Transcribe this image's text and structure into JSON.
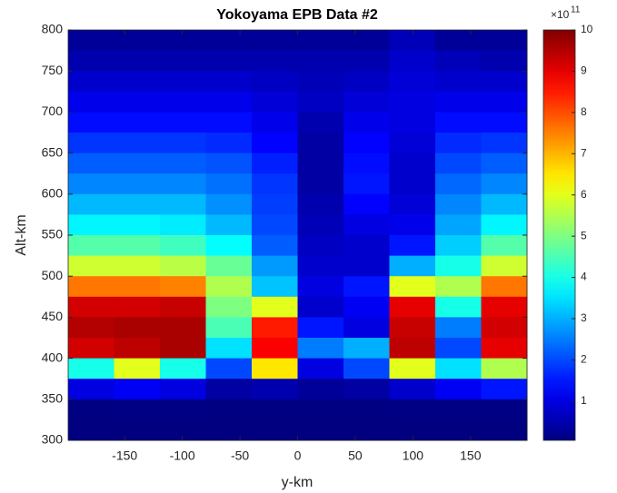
{
  "chart_data": {
    "type": "heatmap",
    "title": "Yokoyama EPB Data #2",
    "xlabel": "y-km",
    "ylabel": "Alt-km",
    "xlim": [
      -199,
      199
    ],
    "ylim": [
      300,
      800
    ],
    "xticks": [
      -150,
      -100,
      -50,
      0,
      50,
      100,
      150
    ],
    "yticks": [
      300,
      350,
      400,
      450,
      500,
      550,
      600,
      650,
      700,
      750,
      800
    ],
    "colormap": "jet",
    "clim": [
      0.05,
      10
    ],
    "cticks": [
      1,
      2,
      3,
      4,
      5,
      6,
      7,
      8,
      9,
      10
    ],
    "c_exponent_base": "×10",
    "c_exponent": "11",
    "z": [
      [
        0.3,
        0.3,
        0.3,
        0.3,
        0.3,
        0.3,
        0.3,
        0.6,
        0.3,
        0.3
      ],
      [
        0.5,
        0.5,
        0.5,
        0.5,
        0.5,
        0.5,
        0.5,
        0.8,
        0.6,
        0.5
      ],
      [
        0.8,
        0.8,
        0.8,
        0.8,
        0.7,
        0.6,
        0.7,
        0.9,
        0.8,
        0.8
      ],
      [
        1.1,
        1.1,
        1.1,
        1.1,
        0.9,
        0.7,
        0.9,
        1.0,
        1.1,
        1.1
      ],
      [
        1.4,
        1.4,
        1.4,
        1.4,
        1.1,
        0.5,
        1.1,
        1.0,
        1.4,
        1.4
      ],
      [
        1.8,
        1.8,
        1.8,
        1.7,
        1.3,
        0.4,
        1.3,
        0.9,
        1.7,
        1.8
      ],
      [
        2.2,
        2.2,
        2.2,
        2.1,
        1.6,
        0.4,
        1.4,
        0.8,
        2.0,
        2.2
      ],
      [
        2.6,
        2.6,
        2.6,
        2.4,
        1.8,
        0.4,
        1.5,
        0.8,
        2.3,
        2.6
      ],
      [
        3.1,
        3.1,
        3.1,
        2.7,
        1.9,
        0.5,
        1.3,
        0.9,
        2.6,
        3.1
      ],
      [
        3.7,
        3.7,
        3.6,
        3.1,
        2.0,
        0.6,
        1.0,
        1.1,
        2.9,
        3.7
      ],
      [
        4.6,
        4.6,
        4.4,
        3.8,
        2.2,
        0.7,
        0.8,
        1.5,
        3.3,
        4.6
      ],
      [
        5.8,
        5.8,
        5.6,
        4.8,
        2.8,
        0.8,
        0.8,
        3.0,
        4.0,
        5.8
      ],
      [
        7.6,
        7.6,
        7.5,
        5.5,
        3.2,
        1.0,
        1.5,
        6.0,
        5.5,
        7.6
      ],
      [
        9.2,
        9.2,
        9.3,
        5.0,
        6.0,
        0.8,
        1.2,
        9.0,
        4.0,
        9.0
      ],
      [
        9.5,
        9.6,
        9.6,
        4.5,
        8.5,
        1.5,
        1.0,
        9.3,
        2.5,
        9.2
      ],
      [
        9.2,
        9.4,
        9.6,
        3.5,
        8.8,
        2.5,
        3.0,
        9.4,
        2.0,
        9.0
      ],
      [
        4.0,
        6.0,
        4.0,
        2.0,
        6.5,
        1.0,
        2.0,
        6.0,
        3.5,
        5.5
      ],
      [
        1.0,
        1.2,
        1.0,
        0.4,
        0.5,
        0.3,
        0.4,
        0.8,
        1.2,
        1.5
      ],
      [
        0.08,
        0.1,
        0.1,
        0.08,
        0.08,
        0.08,
        0.08,
        0.1,
        0.1,
        0.1
      ],
      [
        0.05,
        0.05,
        0.05,
        0.05,
        0.05,
        0.05,
        0.05,
        0.05,
        0.05,
        0.05
      ]
    ]
  }
}
